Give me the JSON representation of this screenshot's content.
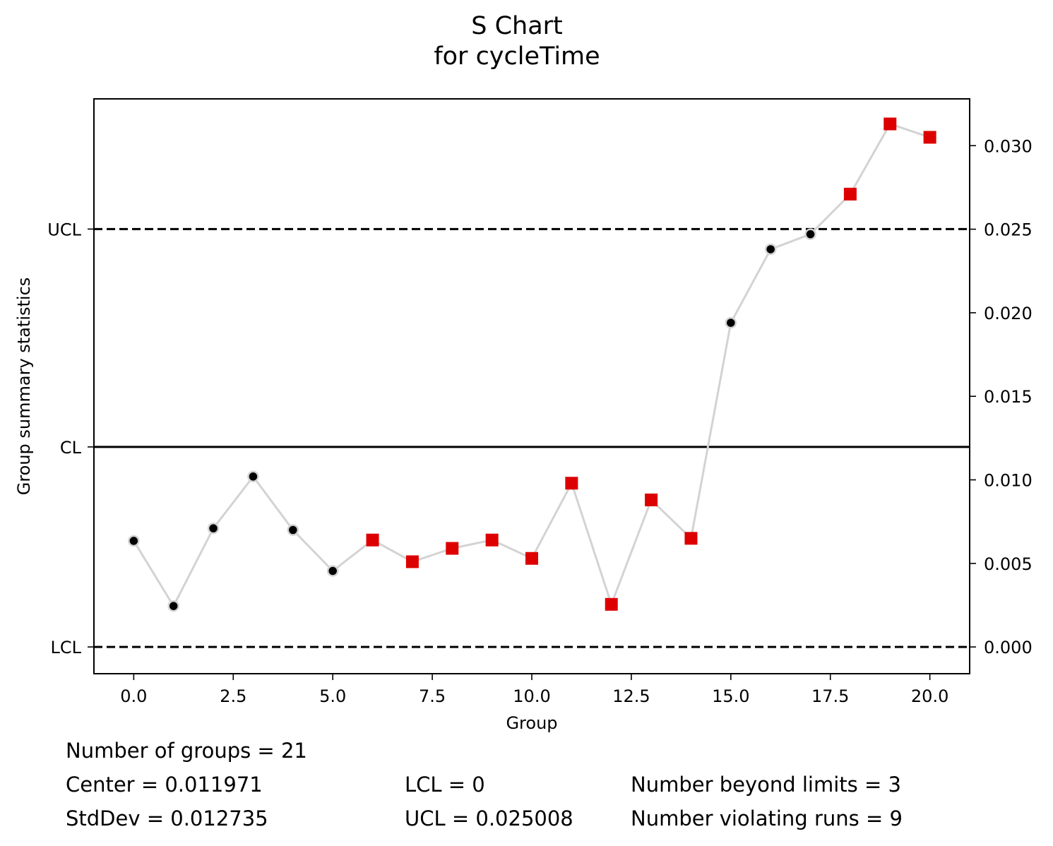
{
  "chart_data": {
    "type": "line",
    "title": "S Chart",
    "subtitle": "for cycleTime",
    "xlabel": "Group",
    "ylabel": "Group summary statistics",
    "xlim": [
      -1,
      21
    ],
    "ylim": [
      -0.0016,
      0.0328
    ],
    "x_ticks": [
      0.0,
      2.5,
      5.0,
      7.5,
      10.0,
      12.5,
      15.0,
      17.5,
      20.0
    ],
    "x_tick_labels": [
      "0.0",
      "2.5",
      "5.0",
      "7.5",
      "10.0",
      "12.5",
      "15.0",
      "17.5",
      "20.0"
    ],
    "y_ticks_right": [
      0.0,
      0.005,
      0.01,
      0.015,
      0.02,
      0.025,
      0.03
    ],
    "y_tick_labels_right": [
      "0.000",
      "0.005",
      "0.010",
      "0.015",
      "0.020",
      "0.025",
      "0.030"
    ],
    "limit_lines": [
      {
        "label": "UCL",
        "value": 0.025008,
        "style": "dashed"
      },
      {
        "label": "CL",
        "value": 0.011971,
        "style": "solid"
      },
      {
        "label": "LCL",
        "value": 0.0,
        "style": "dashed"
      }
    ],
    "series": [
      {
        "x": [
          0,
          1,
          2,
          3,
          4,
          5,
          6,
          7,
          8,
          9,
          10,
          11,
          12,
          13,
          14,
          15,
          16,
          17,
          18,
          19,
          20
        ],
        "values": [
          0.00635,
          0.00245,
          0.0071,
          0.0102,
          0.007,
          0.00455,
          0.0064,
          0.0051,
          0.0059,
          0.0064,
          0.0053,
          0.0098,
          0.00255,
          0.0088,
          0.0065,
          0.0194,
          0.0238,
          0.0247,
          0.0271,
          0.0313,
          0.0305
        ],
        "violating": [
          false,
          false,
          false,
          false,
          false,
          false,
          true,
          true,
          true,
          true,
          true,
          true,
          true,
          true,
          true,
          false,
          false,
          false,
          true,
          true,
          true
        ]
      }
    ],
    "grid": false,
    "colors": {
      "line": "#d3d3d3",
      "normal_point": "#000000",
      "violating_point": "#dd0000",
      "limits": "#000000"
    }
  },
  "stats": {
    "groups": "Number of groups = 21",
    "center": "Center = 0.011971",
    "stddev": "StdDev = 0.012735",
    "lcl": "LCL = 0",
    "ucl": "UCL = 0.025008",
    "beyond": "Number beyond limits = 3",
    "runs": "Number violating runs = 9"
  }
}
